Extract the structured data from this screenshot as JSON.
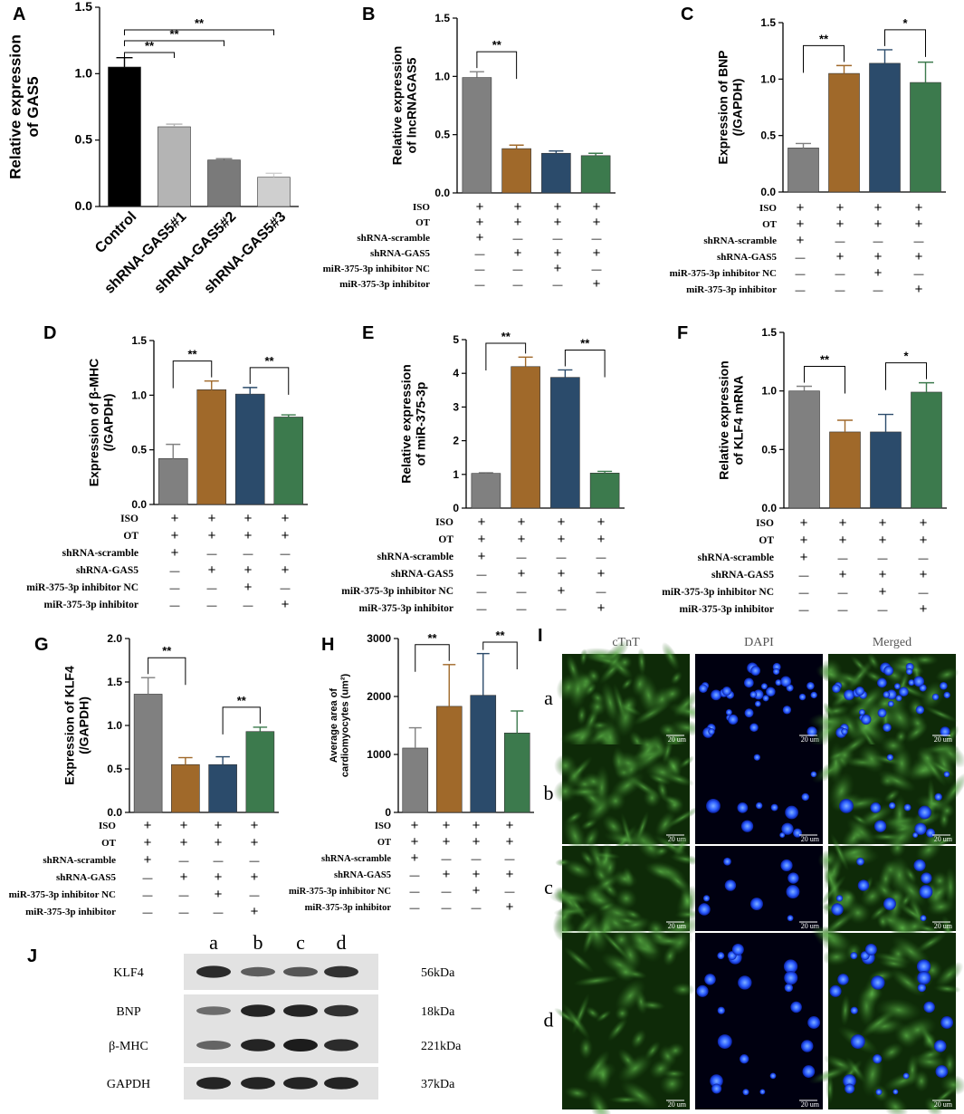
{
  "panel_labels": [
    "A",
    "B",
    "C",
    "D",
    "E",
    "F",
    "G",
    "H",
    "I",
    "J"
  ],
  "colors": {
    "gray": "#808080",
    "brown": "#A0692A",
    "navy": "#2B4B6B",
    "green": "#3C7A4D",
    "black": "#000000",
    "lightgray": "#B4B4B4",
    "midgray": "#7A7A7A",
    "palegray": "#CFCFCF"
  },
  "treatment_rows": [
    "ISO",
    "OT",
    "shRNA-scramble",
    "shRNA-GAS5",
    "miR-375-3p inhibitor NC",
    "miR-375-3p inhibitor"
  ],
  "treatment_matrix": [
    [
      "+",
      "+",
      "+",
      "+"
    ],
    [
      "+",
      "+",
      "+",
      "+"
    ],
    [
      "+",
      "—",
      "—",
      "—"
    ],
    [
      "—",
      "+",
      "+",
      "+"
    ],
    [
      "—",
      "—",
      "+",
      "—"
    ],
    [
      "—",
      "—",
      "—",
      "+"
    ]
  ],
  "chart_data": [
    {
      "id": "A",
      "type": "bar",
      "ylabel": "Relative expression\nof GAS5",
      "ylim": [
        0,
        1.5
      ],
      "yticks": [
        "0.0",
        "0.5",
        "1.0",
        "1.5"
      ],
      "categories": [
        "Control",
        "shRNA-GAS5#1",
        "shRNA-GAS5#2",
        "shRNA-GAS5#3"
      ],
      "values": [
        1.05,
        0.6,
        0.35,
        0.22
      ],
      "errors": [
        0.07,
        0.02,
        0.01,
        0.03
      ],
      "colors": [
        "#000000",
        "#B4B4B4",
        "#7A7A7A",
        "#CFCFCF"
      ],
      "sig": [
        {
          "from": 0,
          "to": 1,
          "label": "**"
        },
        {
          "from": 0,
          "to": 2,
          "label": "**"
        },
        {
          "from": 0,
          "to": 3,
          "label": "**"
        }
      ]
    },
    {
      "id": "B",
      "type": "bar",
      "ylabel": "Relative expression\nof lncRNAGAS5",
      "ylim": [
        0,
        1.5
      ],
      "yticks": [
        "0.0",
        "0.5",
        "1.0",
        "1.5"
      ],
      "values": [
        0.99,
        0.38,
        0.34,
        0.32
      ],
      "errors": [
        0.05,
        0.03,
        0.02,
        0.02
      ],
      "sig": [
        {
          "from": 0,
          "to": 1,
          "label": "**"
        }
      ]
    },
    {
      "id": "C",
      "type": "bar",
      "ylabel": "Expression of BNP\n(/GAPDH)",
      "ylim": [
        0,
        1.5
      ],
      "yticks": [
        "0.0",
        "0.5",
        "1.0",
        "1.5"
      ],
      "values": [
        0.39,
        1.05,
        1.14,
        0.97
      ],
      "errors": [
        0.04,
        0.07,
        0.12,
        0.18
      ],
      "sig": [
        {
          "from": 0,
          "to": 1,
          "label": "**"
        },
        {
          "from": 2,
          "to": 3,
          "label": "*"
        }
      ]
    },
    {
      "id": "D",
      "type": "bar",
      "ylabel": "Expression of  β-MHC\n(/GAPDH)",
      "ylim": [
        0,
        1.5
      ],
      "yticks": [
        "0.0",
        "0.5",
        "1.0",
        "1.5"
      ],
      "values": [
        0.42,
        1.05,
        1.01,
        0.8
      ],
      "errors": [
        0.13,
        0.08,
        0.06,
        0.02
      ],
      "sig": [
        {
          "from": 0,
          "to": 1,
          "label": "**"
        },
        {
          "from": 2,
          "to": 3,
          "label": "**"
        }
      ]
    },
    {
      "id": "E",
      "type": "bar",
      "ylabel": "Relative expression\nof miR-375-3p",
      "ylim": [
        0,
        5
      ],
      "yticks": [
        "0",
        "1",
        "2",
        "3",
        "4",
        "5"
      ],
      "values": [
        1.03,
        4.2,
        3.88,
        1.04
      ],
      "errors": [
        0.02,
        0.28,
        0.22,
        0.05
      ],
      "sig": [
        {
          "from": 0,
          "to": 1,
          "label": "**"
        },
        {
          "from": 2,
          "to": 3,
          "label": "**"
        }
      ]
    },
    {
      "id": "F",
      "type": "bar",
      "ylabel": "Relative expression\nof KLF4 mRNA",
      "ylim": [
        0,
        1.5
      ],
      "yticks": [
        "0.0",
        "0.5",
        "1.0",
        "1.5"
      ],
      "values": [
        1.0,
        0.65,
        0.65,
        0.99
      ],
      "errors": [
        0.04,
        0.1,
        0.15,
        0.08
      ],
      "sig": [
        {
          "from": 0,
          "to": 1,
          "label": "**"
        },
        {
          "from": 2,
          "to": 3,
          "label": "*"
        }
      ]
    },
    {
      "id": "G",
      "type": "bar",
      "ylabel": "Expression of KLF4\n(/GAPDH)",
      "ylim": [
        0,
        2.0
      ],
      "yticks": [
        "0.0",
        "0.5",
        "1.0",
        "1.5",
        "2.0"
      ],
      "values": [
        1.36,
        0.55,
        0.55,
        0.93
      ],
      "errors": [
        0.19,
        0.08,
        0.09,
        0.05
      ],
      "sig": [
        {
          "from": 0,
          "to": 1,
          "label": "**"
        },
        {
          "from": 2,
          "to": 3,
          "label": "**"
        }
      ]
    },
    {
      "id": "H",
      "type": "bar",
      "ylabel": "Average area of\ncardiomyocytes (um²)",
      "ylim": [
        0,
        3000
      ],
      "yticks": [
        "0",
        "1000",
        "2000",
        "3000"
      ],
      "values": [
        1110,
        1830,
        2020,
        1370
      ],
      "errors": [
        350,
        720,
        720,
        380
      ],
      "sig": [
        {
          "from": 0,
          "to": 1,
          "label": "**"
        },
        {
          "from": 2,
          "to": 3,
          "label": "**"
        }
      ]
    }
  ],
  "micro": {
    "columns": [
      "cTnT",
      "DAPI",
      "Merged"
    ],
    "rows": [
      "a",
      "b",
      "c",
      "d"
    ],
    "scale": "20 um"
  },
  "western": {
    "lanes": [
      "a",
      "b",
      "c",
      "d"
    ],
    "rows": [
      {
        "name": "KLF4",
        "size": "56kDa",
        "intensity": [
          0.9,
          0.55,
          0.6,
          0.85
        ]
      },
      {
        "name": "BNP",
        "size": "18kDa",
        "intensity": [
          0.45,
          0.95,
          0.95,
          0.85
        ]
      },
      {
        "name": "β-MHC",
        "size": "221kDa",
        "intensity": [
          0.5,
          0.95,
          1.0,
          0.9
        ]
      },
      {
        "name": "GAPDH",
        "size": "37kDa",
        "intensity": [
          0.95,
          0.95,
          0.95,
          0.95
        ]
      }
    ]
  }
}
